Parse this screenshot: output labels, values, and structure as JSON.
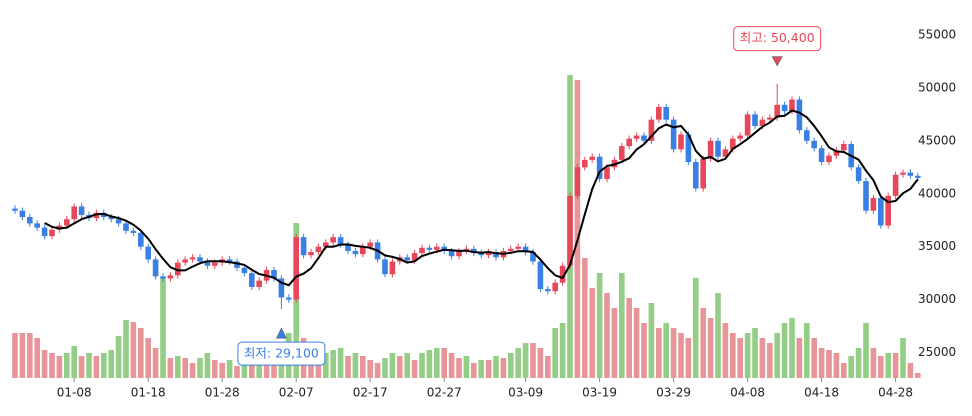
{
  "chart_data": {
    "type": "candlestick",
    "categories": [
      null,
      null,
      null,
      null,
      null,
      null,
      null,
      null,
      "01-08",
      null,
      null,
      null,
      null,
      null,
      null,
      null,
      null,
      null,
      "01-18",
      null,
      null,
      null,
      null,
      null,
      null,
      null,
      null,
      null,
      "01-28",
      null,
      null,
      null,
      null,
      null,
      null,
      null,
      null,
      null,
      "02-07",
      null,
      null,
      null,
      null,
      null,
      null,
      null,
      null,
      null,
      "02-17",
      null,
      null,
      null,
      null,
      null,
      null,
      null,
      null,
      null,
      "02-27",
      null,
      null,
      null,
      null,
      null,
      null,
      null,
      null,
      null,
      null,
      "03-09",
      null,
      null,
      null,
      null,
      null,
      null,
      null,
      null,
      null,
      "03-19",
      null,
      null,
      null,
      null,
      null,
      null,
      null,
      null,
      null,
      "03-29",
      null,
      null,
      null,
      null,
      null,
      null,
      null,
      null,
      null,
      "04-08",
      null,
      null,
      null,
      null,
      null,
      null,
      null,
      null,
      null,
      "04-18",
      null,
      null,
      null,
      null,
      null,
      null,
      null,
      null,
      null,
      "04-28",
      null,
      null,
      null
    ],
    "open": [
      38600,
      38400,
      37800,
      37200,
      36800,
      36000,
      36600,
      37000,
      37600,
      38800,
      38000,
      37700,
      38200,
      37800,
      37600,
      37200,
      36500,
      36300,
      35000,
      33800,
      32200,
      32000,
      32300,
      33500,
      33800,
      34000,
      33600,
      33200,
      33500,
      33800,
      33600,
      33000,
      32500,
      31200,
      31800,
      32800,
      32000,
      30200,
      30000,
      35900,
      34200,
      34500,
      35000,
      35400,
      35900,
      35200,
      34600,
      34300,
      35000,
      35400,
      33800,
      32400,
      33600,
      34000,
      33700,
      34400,
      34900,
      34700,
      35000,
      34600,
      34100,
      34600,
      34800,
      34400,
      34200,
      34500,
      34000,
      34600,
      34800,
      35000,
      34500,
      33600,
      31000,
      30800,
      31600,
      33200,
      39800,
      42500,
      43200,
      43500,
      41400,
      42500,
      43200,
      44500,
      45200,
      45500,
      45000,
      47000,
      48200,
      47000,
      44200,
      45600,
      43000,
      40500,
      43300,
      45000,
      43500,
      44200,
      45200,
      45500,
      47500,
      46400,
      47000,
      47200,
      48400,
      47800,
      48900,
      46000,
      45000,
      44300,
      43000,
      43600,
      44100,
      44700,
      42500,
      41200,
      38400,
      39600,
      37000,
      39800,
      41800,
      42000,
      41700
    ],
    "high": [
      38900,
      38700,
      38100,
      37500,
      37100,
      36900,
      37300,
      37900,
      39100,
      39100,
      38300,
      38500,
      38500,
      38100,
      37900,
      37500,
      36800,
      36600,
      35300,
      34100,
      32500,
      32600,
      33800,
      34100,
      34300,
      34300,
      33900,
      33800,
      34100,
      34100,
      33900,
      33300,
      32800,
      32100,
      33100,
      33100,
      32300,
      30500,
      36200,
      36200,
      34800,
      35300,
      35700,
      36200,
      36200,
      35500,
      34900,
      35300,
      35700,
      35700,
      34100,
      33900,
      34300,
      34300,
      34700,
      35200,
      35200,
      35300,
      35300,
      34900,
      34900,
      35100,
      35100,
      34700,
      34800,
      34800,
      34900,
      35100,
      35300,
      35300,
      34800,
      33900,
      31300,
      31900,
      33500,
      40100,
      42800,
      43500,
      43800,
      43800,
      42800,
      43500,
      44800,
      45500,
      45800,
      45800,
      47300,
      48500,
      48500,
      47300,
      45900,
      45900,
      43300,
      43600,
      45300,
      45300,
      44500,
      45500,
      45800,
      47800,
      47800,
      47300,
      47500,
      50400,
      48700,
      49200,
      49200,
      46300,
      45300,
      44600,
      43900,
      44400,
      45000,
      45000,
      42800,
      41500,
      39900,
      39900,
      40100,
      42100,
      42300,
      42300,
      42000
    ],
    "low": [
      38100,
      37500,
      36900,
      36500,
      35700,
      35700,
      36300,
      36700,
      37300,
      37700,
      37400,
      37400,
      37500,
      37300,
      36900,
      36200,
      36000,
      34700,
      33500,
      31900,
      31700,
      31700,
      32000,
      33200,
      33500,
      33300,
      32900,
      32900,
      33200,
      33300,
      32700,
      32200,
      30900,
      30900,
      31500,
      31700,
      29100,
      29700,
      29700,
      33900,
      33900,
      34200,
      34700,
      35100,
      34900,
      34300,
      34000,
      34000,
      34700,
      33500,
      32100,
      32100,
      33300,
      33400,
      33400,
      34100,
      34400,
      34400,
      34300,
      33800,
      33800,
      34300,
      34100,
      33900,
      33900,
      33700,
      33700,
      34300,
      34500,
      34200,
      33300,
      30700,
      30500,
      30500,
      31300,
      32900,
      39500,
      42200,
      42900,
      41100,
      41100,
      42200,
      42900,
      44200,
      44900,
      44700,
      44700,
      46700,
      46700,
      43900,
      43900,
      42700,
      40200,
      40200,
      43000,
      43200,
      43200,
      43900,
      44900,
      45200,
      46100,
      46100,
      46700,
      46900,
      47500,
      47500,
      45700,
      44700,
      44000,
      42700,
      42700,
      43300,
      43800,
      42200,
      40900,
      38100,
      38100,
      36700,
      36700,
      39500,
      41500,
      41400,
      41200
    ],
    "close": [
      38400,
      37800,
      37200,
      36800,
      36000,
      36600,
      37000,
      37600,
      38800,
      38000,
      37700,
      38200,
      37800,
      37600,
      37200,
      36500,
      36300,
      35000,
      33800,
      32200,
      32000,
      32300,
      33500,
      33800,
      34000,
      33600,
      33200,
      33500,
      33800,
      33600,
      33000,
      32500,
      31200,
      31800,
      32800,
      32000,
      30200,
      30000,
      35900,
      34200,
      34500,
      35000,
      35400,
      35900,
      35200,
      34600,
      34300,
      35000,
      35400,
      33800,
      32400,
      33600,
      34000,
      33700,
      34400,
      34900,
      34700,
      35000,
      34600,
      34100,
      34600,
      34800,
      34400,
      34200,
      34500,
      34000,
      34600,
      34800,
      35000,
      34500,
      33600,
      31000,
      30800,
      31600,
      33200,
      39800,
      42500,
      43200,
      43500,
      41400,
      42500,
      43200,
      44500,
      45200,
      45500,
      45000,
      47000,
      48200,
      47000,
      44200,
      45600,
      43000,
      40500,
      43300,
      45000,
      43500,
      44200,
      45200,
      45500,
      47500,
      46400,
      47000,
      47200,
      48400,
      47800,
      48900,
      46000,
      45000,
      44300,
      43000,
      43600,
      44100,
      44700,
      42500,
      41200,
      38400,
      39600,
      37000,
      39800,
      41800,
      42000,
      41700,
      41500
    ],
    "volume": [
      45,
      45,
      45,
      40,
      28,
      25,
      22,
      25,
      32,
      22,
      25,
      22,
      25,
      28,
      42,
      58,
      56,
      50,
      40,
      30,
      100,
      20,
      22,
      20,
      15,
      20,
      25,
      18,
      15,
      18,
      12,
      25,
      20,
      28,
      22,
      18,
      35,
      45,
      155,
      40,
      30,
      22,
      25,
      28,
      30,
      22,
      25,
      22,
      18,
      15,
      20,
      25,
      22,
      25,
      18,
      25,
      28,
      30,
      30,
      25,
      20,
      22,
      15,
      18,
      18,
      22,
      20,
      25,
      30,
      35,
      35,
      30,
      22,
      50,
      55,
      303,
      298,
      120,
      90,
      105,
      85,
      70,
      105,
      80,
      70,
      55,
      75,
      50,
      55,
      50,
      45,
      40,
      100,
      70,
      60,
      85,
      55,
      45,
      40,
      45,
      50,
      40,
      35,
      45,
      55,
      60,
      40,
      55,
      40,
      30,
      28,
      25,
      15,
      22,
      30,
      55,
      30,
      22,
      25,
      25,
      40,
      15,
      5
    ],
    "ma": [
      null,
      null,
      null,
      null,
      37240,
      36880,
      36720,
      36800,
      37200,
      37600,
      37820,
      38060,
      38100,
      37860,
      37700,
      37460,
      37080,
      36520,
      35760,
      34760,
      33860,
      33060,
      32760,
      32760,
      33120,
      33440,
      33620,
      33620,
      33620,
      33540,
      33420,
      33280,
      32820,
      32420,
      32260,
      32060,
      31600,
      31360,
      32180,
      32460,
      32960,
      33920,
      35000,
      35000,
      35200,
      35220,
      35080,
      35000,
      34900,
      34620,
      34180,
      34040,
      33840,
      33500,
      33620,
      34120,
      34340,
      34540,
      34720,
      34660,
      34600,
      34620,
      34500,
      34420,
      34500,
      34380,
      34340,
      34420,
      34580,
      34580,
      34500,
      33780,
      32980,
      32300,
      32040,
      33280,
      35580,
      38060,
      40440,
      42080,
      42620,
      42760,
      43020,
      43360,
      44180,
      44680,
      45440,
      46180,
      46540,
      46280,
      46400,
      45600,
      44060,
      43320,
      43480,
      43060,
      43300,
      44240,
      44680,
      45180,
      45760,
      46320,
      46720,
      47300,
      47360,
      47860,
      47660,
      47220,
      46400,
      45440,
      44380,
      44000,
      43940,
      43580,
      43220,
      42180,
      41280,
      39740,
      39200,
      39320,
      40040,
      40460,
      41360
    ],
    "up_color": "#e8475a",
    "down_color": "#3a80e4",
    "volume_up_color": "#93cd86",
    "volume_down_color": "#e8959a",
    "ma_color": "#000000",
    "ylim": [
      22600,
      58300
    ],
    "yticks": [
      25000,
      30000,
      35000,
      40000,
      45000,
      50000,
      55000
    ],
    "grid": false,
    "annotations": {
      "max": "최고: 50,400",
      "min": "최저: 29,100"
    }
  }
}
